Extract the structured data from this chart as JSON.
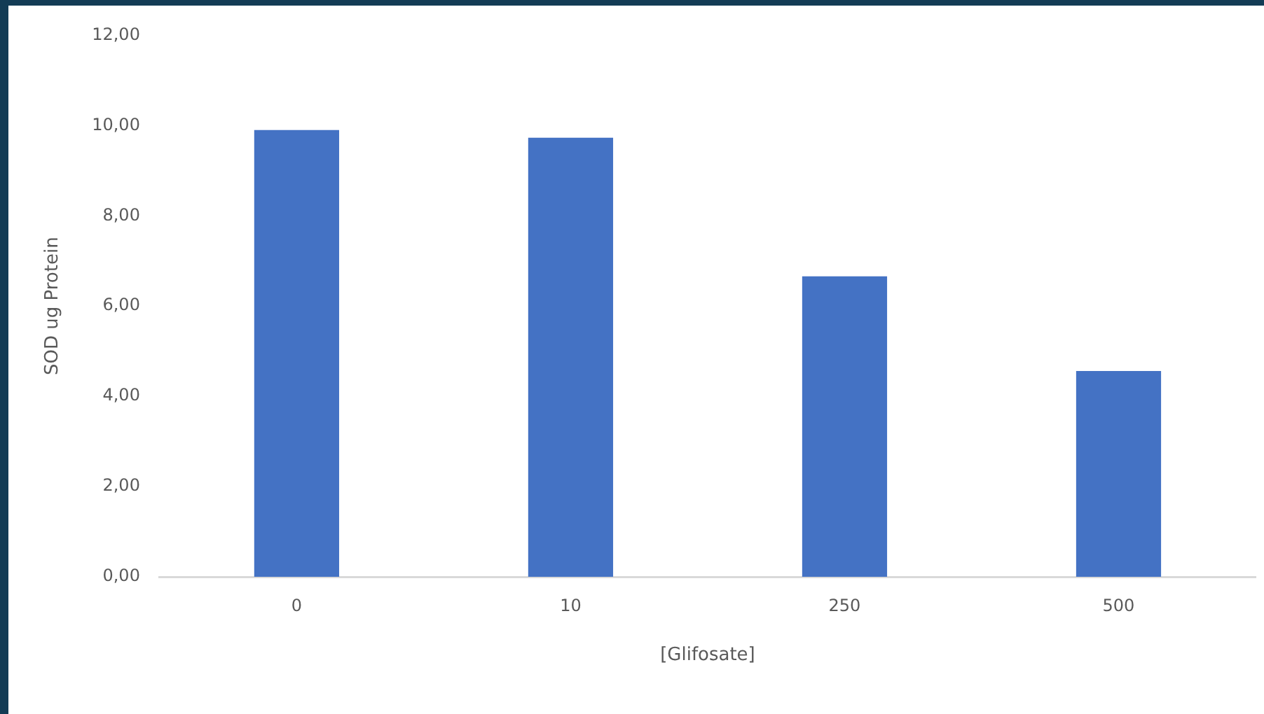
{
  "chart_data": {
    "type": "bar",
    "xlabel": "[Glifosate]",
    "ylabel": "SOD ug Protein",
    "categories": [
      "0",
      "10",
      "250",
      "500"
    ],
    "values": [
      9.9,
      9.73,
      6.66,
      4.56
    ],
    "color": "#4472c4",
    "ylim": [
      0,
      12
    ],
    "yticks": [
      {
        "value": 0,
        "label": "0,00"
      },
      {
        "value": 2,
        "label": "2,00"
      },
      {
        "value": 4,
        "label": "4,00"
      },
      {
        "value": 6,
        "label": "6,00"
      },
      {
        "value": 8,
        "label": "8,00"
      },
      {
        "value": 10,
        "label": "10,00"
      },
      {
        "value": 12,
        "label": "12,00"
      }
    ],
    "grid": false,
    "legend": false
  }
}
